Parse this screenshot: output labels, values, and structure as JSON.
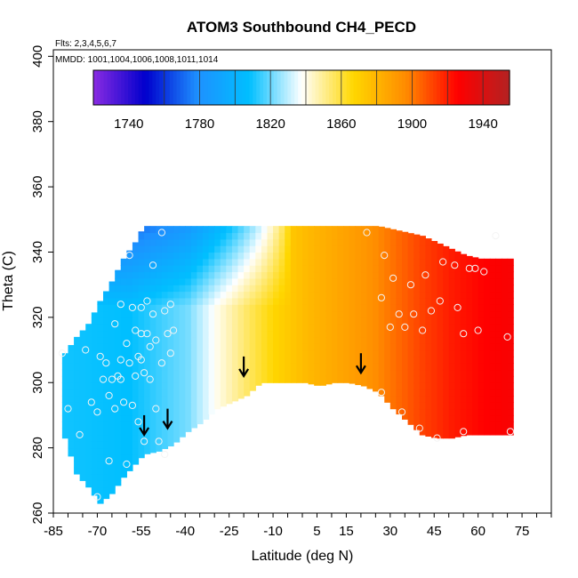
{
  "chart_data": {
    "type": "heatmap",
    "title": "ATOM3 Southbound CH4_PECD",
    "subtitle_flights": "Flts: 2,3,4,5,6,7",
    "subtitle_dates": "MMDD: 1001,1004,1006,1008,1011,1014",
    "xlabel": "Latitude (deg N)",
    "ylabel": "Theta (C)",
    "xlim": [
      -85,
      85
    ],
    "ylim": [
      260,
      402
    ],
    "x_ticks": [
      "-85",
      "-70",
      "-55",
      "-40",
      "-25",
      "-10",
      "5",
      "15",
      "30",
      "45",
      "60",
      "75"
    ],
    "y_ticks": [
      "260",
      "280",
      "300",
      "320",
      "340",
      "360",
      "380",
      "400"
    ],
    "colorbar": {
      "min": 1720,
      "max": 1955,
      "tick_labels": [
        "1740",
        "1780",
        "1820",
        "1860",
        "1900",
        "1940"
      ],
      "colors": [
        "#8a2be2",
        "#0000cd",
        "#1e90ff",
        "#00bfff",
        "#ffffff",
        "#ffd700",
        "#ff8c00",
        "#ff0000",
        "#b22222"
      ]
    },
    "field": [
      {
        "lat": -82,
        "bottom": 283,
        "top": 309
      },
      {
        "lat": -78,
        "bottom": 272,
        "top": 314
      },
      {
        "lat": -74,
        "bottom": 268,
        "top": 318
      },
      {
        "lat": -70,
        "bottom": 263,
        "top": 325
      },
      {
        "lat": -66,
        "bottom": 266,
        "top": 331
      },
      {
        "lat": -62,
        "bottom": 271,
        "top": 338
      },
      {
        "lat": -58,
        "bottom": 275,
        "top": 343
      },
      {
        "lat": -55,
        "bottom": 278,
        "top": 348
      },
      {
        "lat": -50,
        "bottom": 279,
        "top": 348
      },
      {
        "lat": -45,
        "bottom": 281,
        "top": 348
      },
      {
        "lat": -40,
        "bottom": 285,
        "top": 348
      },
      {
        "lat": -35,
        "bottom": 288,
        "top": 348
      },
      {
        "lat": -30,
        "bottom": 292,
        "top": 348
      },
      {
        "lat": -25,
        "bottom": 294,
        "top": 348
      },
      {
        "lat": -20,
        "bottom": 296,
        "top": 348
      },
      {
        "lat": -15,
        "bottom": 300,
        "top": 348
      },
      {
        "lat": -10,
        "bottom": 300,
        "top": 348
      },
      {
        "lat": -5,
        "bottom": 300,
        "top": 348
      },
      {
        "lat": 0,
        "bottom": 300,
        "top": 348
      },
      {
        "lat": 5,
        "bottom": 299,
        "top": 348
      },
      {
        "lat": 10,
        "bottom": 300,
        "top": 348
      },
      {
        "lat": 15,
        "bottom": 300,
        "top": 348
      },
      {
        "lat": 20,
        "bottom": 299,
        "top": 348
      },
      {
        "lat": 25,
        "bottom": 297,
        "top": 348
      },
      {
        "lat": 30,
        "bottom": 292,
        "top": 347
      },
      {
        "lat": 35,
        "bottom": 288,
        "top": 346
      },
      {
        "lat": 40,
        "bottom": 284,
        "top": 345
      },
      {
        "lat": 45,
        "bottom": 283,
        "top": 343
      },
      {
        "lat": 50,
        "bottom": 283,
        "top": 341
      },
      {
        "lat": 55,
        "bottom": 284,
        "top": 339
      },
      {
        "lat": 60,
        "bottom": 284,
        "top": 338
      },
      {
        "lat": 65,
        "bottom": 284,
        "top": 338
      },
      {
        "lat": 70,
        "bottom": 284,
        "top": 338
      }
    ],
    "value_profile": [
      {
        "lat": -82,
        "value": 1810
      },
      {
        "lat": -60,
        "value": 1808
      },
      {
        "lat": -50,
        "value": 1815
      },
      {
        "lat": -40,
        "value": 1822
      },
      {
        "lat": -30,
        "value": 1840
      },
      {
        "lat": -20,
        "value": 1855
      },
      {
        "lat": -10,
        "value": 1868
      },
      {
        "lat": 0,
        "value": 1878
      },
      {
        "lat": 10,
        "value": 1885
      },
      {
        "lat": 20,
        "value": 1892
      },
      {
        "lat": 30,
        "value": 1902
      },
      {
        "lat": 40,
        "value": 1912
      },
      {
        "lat": 50,
        "value": 1920
      },
      {
        "lat": 60,
        "value": 1925
      },
      {
        "lat": 70,
        "value": 1928
      }
    ],
    "upper_gradient": {
      "top_theta": 348,
      "theta_start": 322,
      "lat_max": -5,
      "min_value": 1760
    },
    "arrows": [
      {
        "lat": -54,
        "theta": 284
      },
      {
        "lat": -46,
        "theta": 286
      },
      {
        "lat": -20,
        "theta": 302
      },
      {
        "lat": 20,
        "theta": 303
      }
    ],
    "samples": [
      [
        -82,
        309
      ],
      [
        -80,
        292
      ],
      [
        -76,
        284
      ],
      [
        -74,
        310
      ],
      [
        -72,
        294
      ],
      [
        -70,
        291
      ],
      [
        -69,
        308
      ],
      [
        -68,
        301
      ],
      [
        -67,
        306
      ],
      [
        -66,
        296
      ],
      [
        -66,
        276
      ],
      [
        -65,
        301
      ],
      [
        -64,
        318
      ],
      [
        -64,
        292
      ],
      [
        -63,
        302
      ],
      [
        -62,
        324
      ],
      [
        -62,
        307
      ],
      [
        -62,
        301
      ],
      [
        -61,
        294
      ],
      [
        -60,
        312
      ],
      [
        -60,
        275
      ],
      [
        -59,
        339
      ],
      [
        -59,
        306
      ],
      [
        -58,
        293
      ],
      [
        -58,
        323
      ],
      [
        -57,
        316
      ],
      [
        -57,
        302
      ],
      [
        -56,
        308
      ],
      [
        -56,
        288
      ],
      [
        -55,
        323
      ],
      [
        -55,
        315
      ],
      [
        -55,
        307
      ],
      [
        -54,
        303
      ],
      [
        -54,
        282
      ],
      [
        -53,
        325
      ],
      [
        -53,
        315
      ],
      [
        -52,
        301
      ],
      [
        -52,
        311
      ],
      [
        -51,
        336
      ],
      [
        -51,
        321
      ],
      [
        -50,
        313
      ],
      [
        -50,
        292
      ],
      [
        -49,
        282
      ],
      [
        -48,
        346
      ],
      [
        -48,
        306
      ],
      [
        -47,
        322
      ],
      [
        -47,
        278
      ],
      [
        -46,
        315
      ],
      [
        -45,
        324
      ],
      [
        -45,
        309
      ],
      [
        -44,
        316
      ],
      [
        -70,
        265
      ],
      [
        27,
        297
      ],
      [
        27,
        326
      ],
      [
        28,
        339
      ],
      [
        30,
        317
      ],
      [
        31,
        332
      ],
      [
        33,
        321
      ],
      [
        34,
        291
      ],
      [
        35,
        317
      ],
      [
        37,
        330
      ],
      [
        38,
        321
      ],
      [
        40,
        286
      ],
      [
        41,
        316
      ],
      [
        42,
        333
      ],
      [
        44,
        322
      ],
      [
        46,
        283
      ],
      [
        47,
        325
      ],
      [
        48,
        337
      ],
      [
        52,
        336
      ],
      [
        53,
        323
      ],
      [
        55,
        285
      ],
      [
        55,
        315
      ],
      [
        57,
        335
      ],
      [
        59,
        335
      ],
      [
        60,
        316
      ],
      [
        62,
        334
      ],
      [
        66,
        345
      ],
      [
        70,
        314
      ],
      [
        71,
        285
      ],
      [
        22,
        346
      ]
    ]
  }
}
